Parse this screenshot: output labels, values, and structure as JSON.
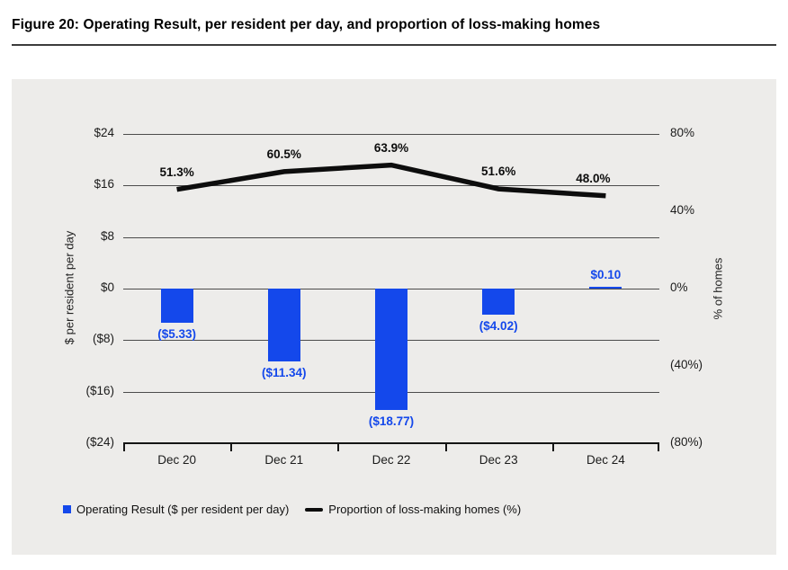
{
  "title": "Figure 20: Operating Result, per resident per day, and proportion of loss-making homes",
  "chart_data": {
    "type": "combo-bar-line",
    "categories": [
      "Dec 20",
      "Dec 21",
      "Dec 22",
      "Dec 23",
      "Dec 24"
    ],
    "series": [
      {
        "name": "Operating Result ($ per resident per day)",
        "type": "bar",
        "axis": "left",
        "color": "#1448eb",
        "values": [
          -5.33,
          -11.34,
          -18.77,
          -4.02,
          0.1
        ],
        "labels": [
          "($5.33)",
          "($11.34)",
          "($18.77)",
          "($4.02)",
          "$0.10"
        ]
      },
      {
        "name": "Proportion of loss-making homes (%)",
        "type": "line",
        "axis": "right",
        "color": "#0d0d0d",
        "values": [
          51.3,
          60.5,
          63.9,
          51.6,
          48.0
        ],
        "labels": [
          "51.3%",
          "60.5%",
          "63.9%",
          "51.6%",
          "48.0%"
        ]
      }
    ],
    "left_axis": {
      "label": "$ per resident per day",
      "min": -24,
      "max": 24,
      "ticks": [
        "$24",
        "$16",
        "$8",
        "$0",
        "($8)",
        "($16)",
        "($24)"
      ],
      "tick_values": [
        24,
        16,
        8,
        0,
        -8,
        -16,
        -24
      ]
    },
    "right_axis": {
      "label": "% of homes",
      "min": -80,
      "max": 80,
      "ticks": [
        "80%",
        "40%",
        "0%",
        "(40%)",
        "(80%)"
      ],
      "tick_values": [
        80,
        40,
        0,
        -40,
        -80
      ]
    },
    "legend_position": "bottom-left",
    "grid": true,
    "panel_color": "#edecea",
    "accent_color": "#1448eb",
    "line_color": "#0d0d0d"
  }
}
